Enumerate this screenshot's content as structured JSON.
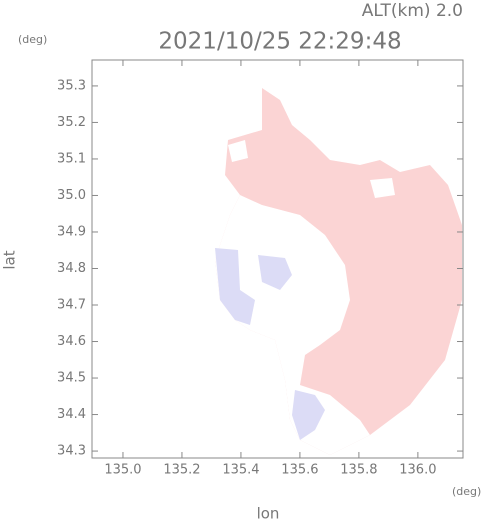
{
  "chart_data": {
    "type": "map",
    "annotation": "ALT(km) 2.0",
    "title": "2021/10/25 22:29:48",
    "y_unit": "(deg)",
    "x_unit": "(deg)",
    "x_label": "lon",
    "y_label": "lat",
    "xlim": [
      134.895,
      136.153
    ],
    "ylim": [
      34.281,
      35.371
    ],
    "xticks": [
      {
        "value": 135,
        "label": "135.0"
      },
      135.2,
      135.4,
      135.6,
      135.8,
      {
        "value": 136,
        "label": "136.0"
      }
    ],
    "yticks": [
      34.3,
      34.4,
      34.5,
      34.6,
      34.7,
      34.8,
      34.9,
      {
        "value": 35,
        "label": "35.0"
      },
      35.1,
      35.2,
      35.3
    ]
  }
}
